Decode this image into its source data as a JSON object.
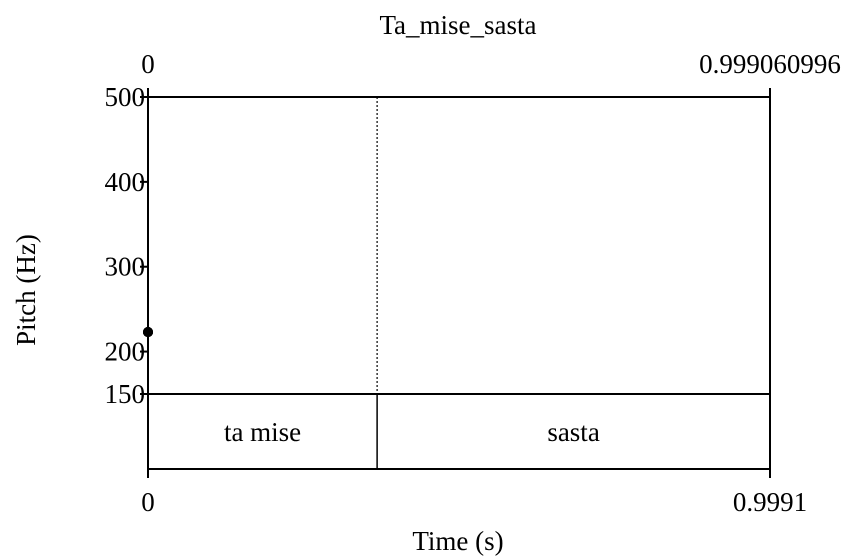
{
  "chart_data": {
    "type": "scatter",
    "title": "Ta_mise_sasta",
    "xlabel": "Time (s)",
    "ylabel": "Pitch (Hz)",
    "xlim": [
      0,
      0.999060996
    ],
    "ylim": [
      150,
      500
    ],
    "top_axis_labels": {
      "left": "0",
      "right": "0.999060996"
    },
    "bottom_axis_labels": {
      "left": "0",
      "right": "0.9991"
    },
    "y_ticks": [
      {
        "value": 500,
        "label": "500"
      },
      {
        "value": 400,
        "label": "400"
      },
      {
        "value": 300,
        "label": "300"
      },
      {
        "value": 200,
        "label": "200"
      },
      {
        "value": 150,
        "label": "150"
      }
    ],
    "boundary": 0.368,
    "tier": [
      {
        "label": "ta mise",
        "start": 0,
        "end": 0.368
      },
      {
        "label": "sasta",
        "start": 0.368,
        "end": 0.999060996
      }
    ],
    "marker_color": "#000000",
    "series": [
      {
        "points": [
          [
            0.0,
            223
          ],
          [
            0.0,
            223
          ],
          [
            0.0,
            223
          ],
          [
            0.0,
            223
          ]
        ]
      }
    ]
  }
}
